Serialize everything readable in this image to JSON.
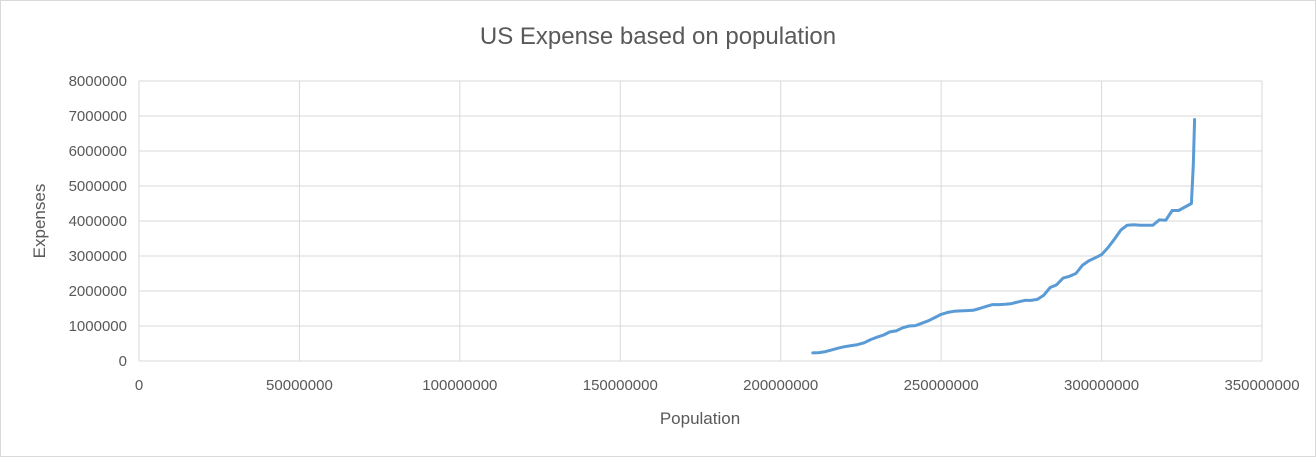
{
  "chart_data": {
    "type": "line",
    "title": "US Expense based on population",
    "xlabel": "Population",
    "ylabel": "Expenses",
    "xlim": [
      0,
      350000000
    ],
    "ylim": [
      0,
      8000000
    ],
    "x_ticks": [
      0,
      50000000,
      100000000,
      150000000,
      200000000,
      250000000,
      300000000,
      350000000
    ],
    "y_ticks": [
      0,
      1000000,
      2000000,
      3000000,
      4000000,
      5000000,
      6000000,
      7000000,
      8000000
    ],
    "x_tick_labels": [
      "0",
      "50000000",
      "100000000",
      "150000000",
      "200000000",
      "250000000",
      "300000000",
      "350000000"
    ],
    "y_tick_labels": [
      "0",
      "1000000",
      "2000000",
      "3000000",
      "4000000",
      "5000000",
      "6000000",
      "7000000",
      "8000000"
    ],
    "grid": true,
    "legend": "none",
    "series_color": "#5b9bd5",
    "series": [
      {
        "x": [
          210000000,
          212000000,
          214000000,
          216000000,
          218000000,
          220000000,
          222000000,
          224000000,
          226000000,
          228000000,
          230000000,
          232000000,
          234000000,
          236000000,
          238000000,
          240000000,
          242000000,
          244000000,
          246000000,
          248000000,
          250000000,
          252000000,
          254000000,
          256000000,
          258000000,
          260000000,
          262000000,
          264000000,
          266000000,
          268000000,
          270000000,
          272000000,
          274000000,
          276000000,
          278000000,
          280000000,
          282000000,
          284000000,
          286000000,
          288000000,
          290000000,
          292000000,
          294000000,
          296000000,
          298000000,
          300000000,
          302000000,
          304000000,
          306000000,
          308000000,
          310000000,
          312000000,
          314000000,
          316000000,
          318000000,
          320000000,
          322000000,
          324000000,
          326000000,
          328000000,
          328600000,
          329000000
        ],
        "y": [
          230000,
          240000,
          270000,
          320000,
          370000,
          410000,
          440000,
          470000,
          520000,
          610000,
          680000,
          740000,
          830000,
          860000,
          950000,
          1000000,
          1010000,
          1080000,
          1150000,
          1240000,
          1330000,
          1390000,
          1420000,
          1430000,
          1440000,
          1450000,
          1500000,
          1560000,
          1610000,
          1610000,
          1620000,
          1640000,
          1690000,
          1730000,
          1730000,
          1760000,
          1880000,
          2100000,
          2180000,
          2370000,
          2420000,
          2500000,
          2730000,
          2860000,
          2950000,
          3040000,
          3240000,
          3480000,
          3740000,
          3880000,
          3890000,
          3880000,
          3880000,
          3880000,
          4030000,
          4020000,
          4300000,
          4300000,
          4400000,
          4500000,
          5600000,
          6900000
        ]
      }
    ]
  }
}
